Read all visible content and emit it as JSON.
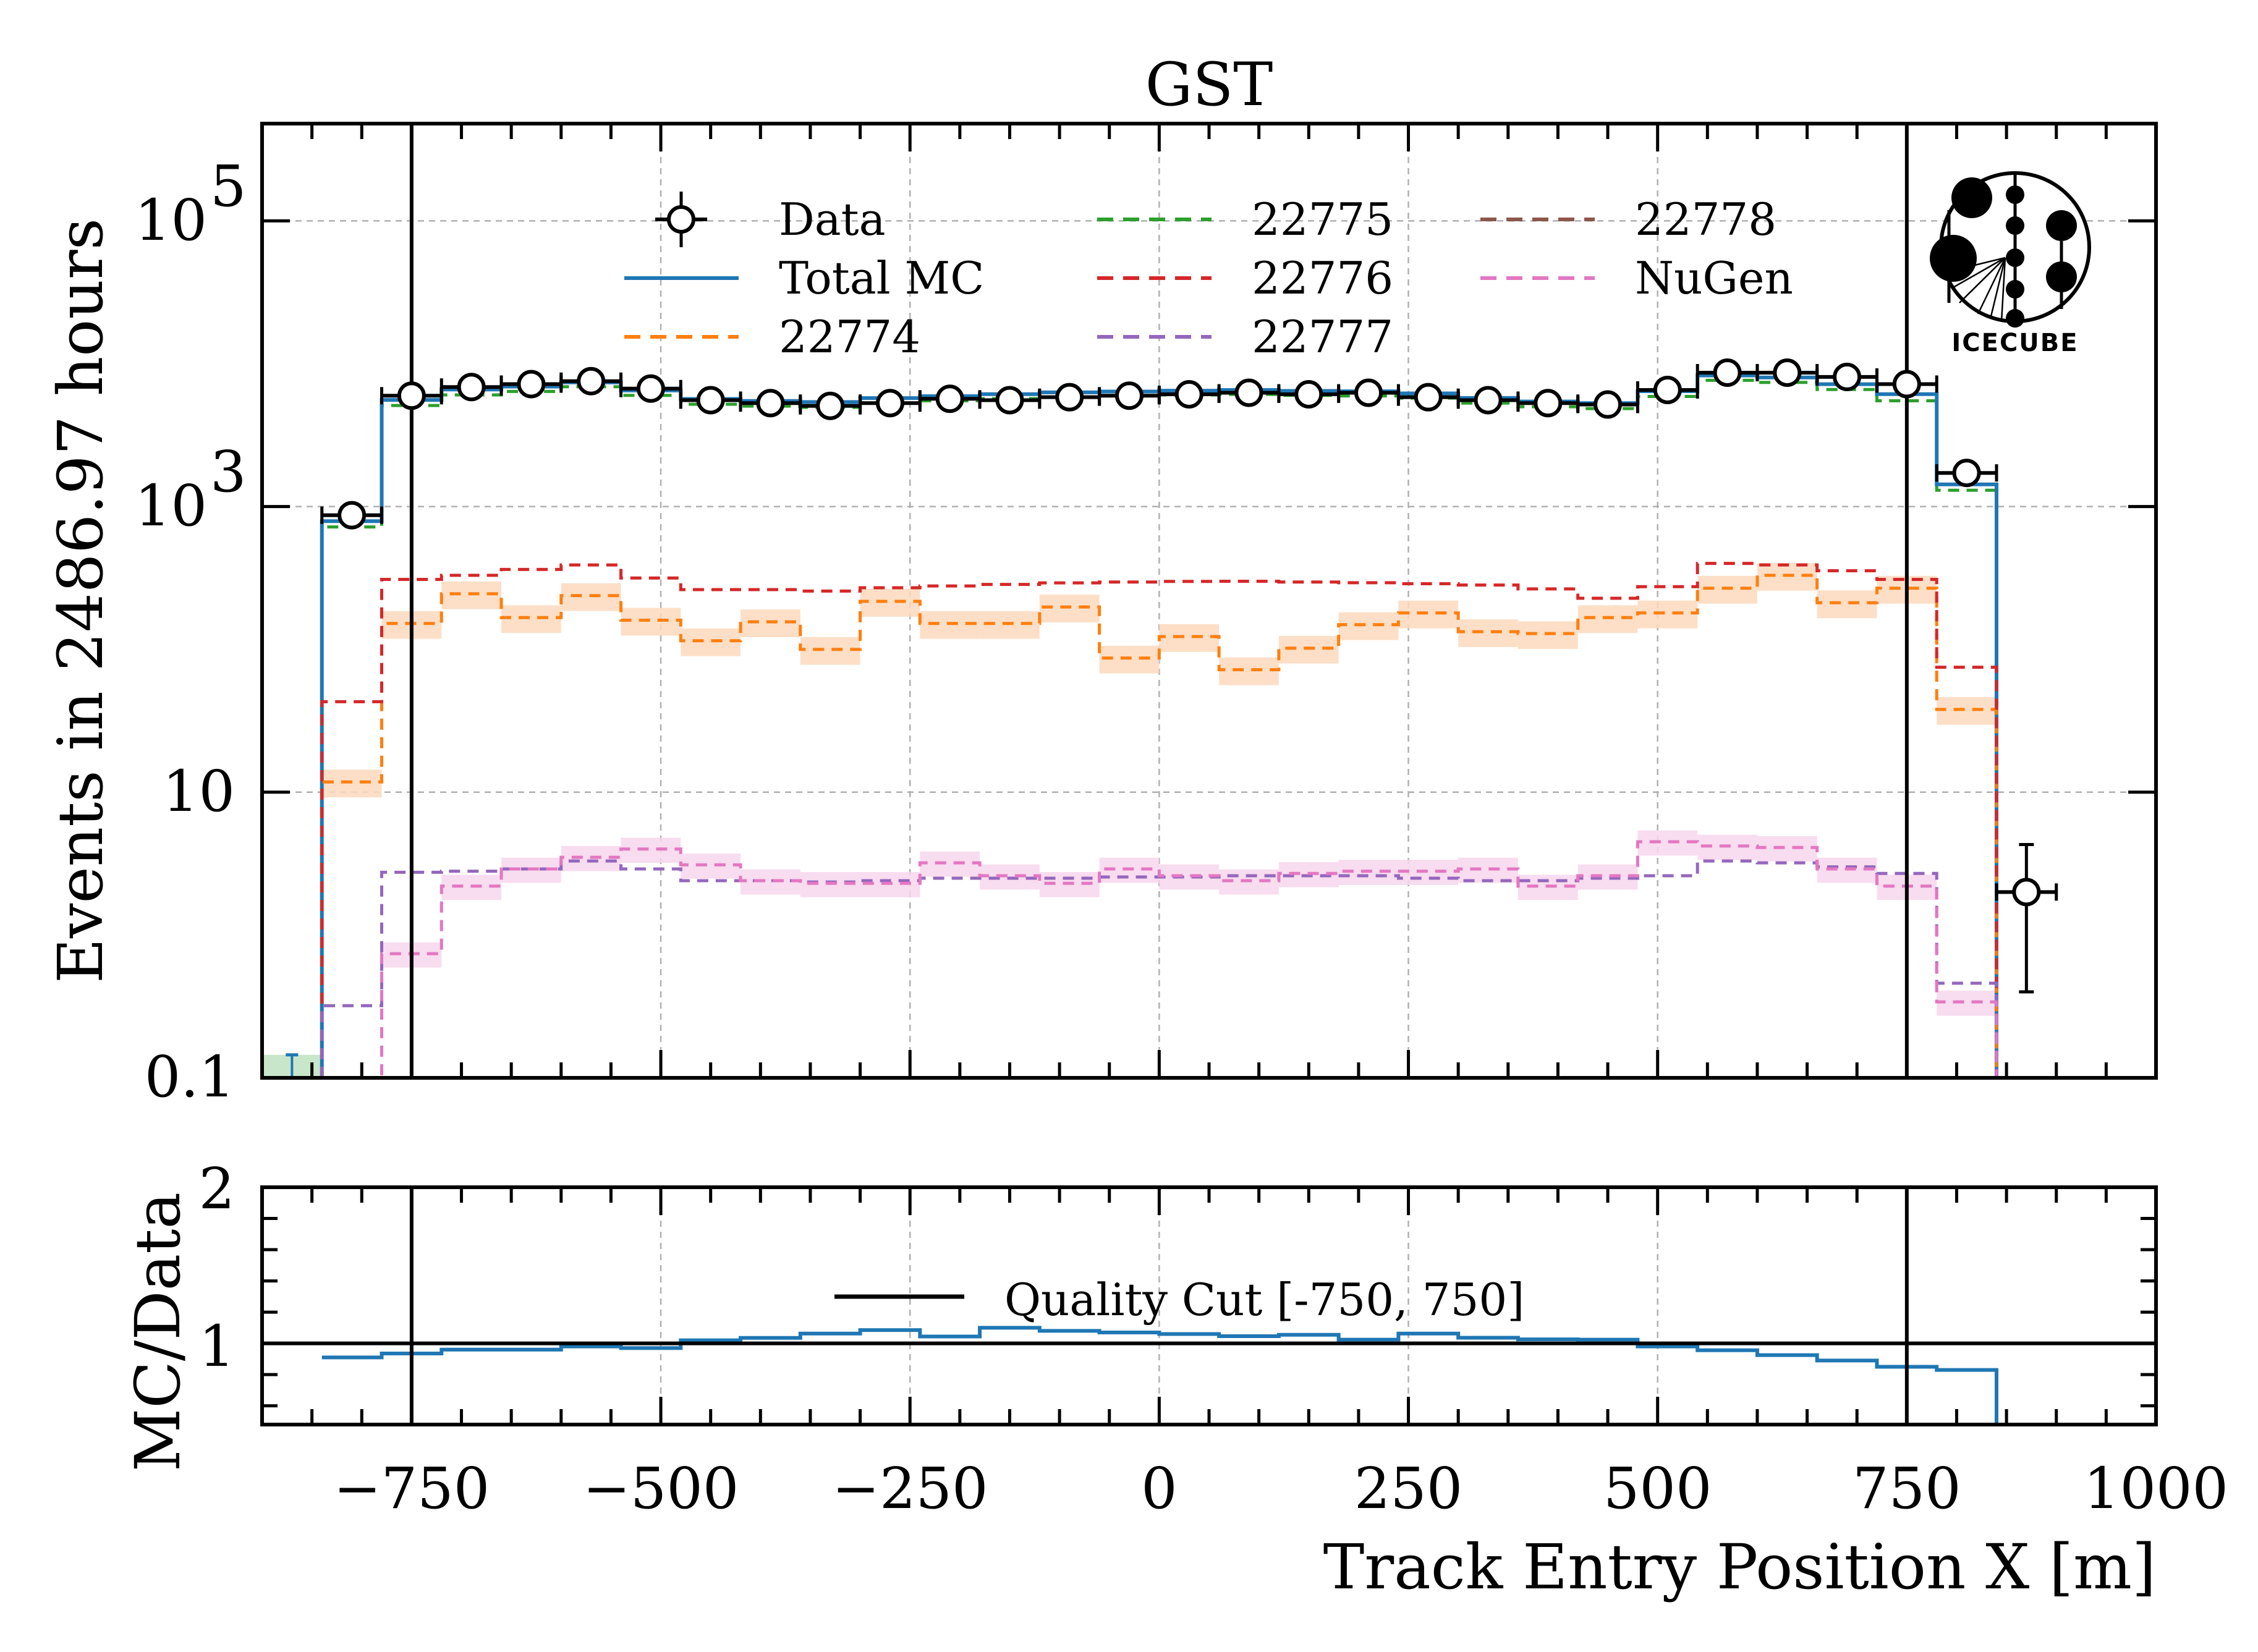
{
  "chart_data": [
    {
      "type": "histogram-step",
      "panel": "main",
      "title": "GST",
      "xlabel": "",
      "ylabel": "Events in 2486.97 hours",
      "yscale": "log",
      "xlim": [
        -900,
        1000
      ],
      "ylim": [
        0.1,
        480000
      ],
      "yticks": [
        {
          "value": 0.1,
          "label": "0.1"
        },
        {
          "value": 10,
          "label": "10"
        },
        {
          "value": 1000,
          "label": "10",
          "sup": "3"
        },
        {
          "value": 100000,
          "label": "10",
          "sup": "5"
        }
      ],
      "grid": true,
      "bin_edges": [
        -840,
        -780,
        -720,
        -660,
        -600,
        -540,
        -480,
        -420,
        -360,
        -300,
        -240,
        -180,
        -120,
        -60,
        0,
        60,
        120,
        180,
        240,
        300,
        360,
        420,
        480,
        540,
        600,
        660,
        720,
        780,
        840
      ],
      "vlines": [
        -750,
        750
      ],
      "data": {
        "name": "Data",
        "x": [
          -810,
          -750,
          -690,
          -630,
          -570,
          -510,
          -450,
          -390,
          -330,
          -270,
          -210,
          -150,
          -90,
          -30,
          30,
          90,
          150,
          210,
          270,
          330,
          390,
          450,
          510,
          570,
          630,
          690,
          750,
          810,
          870
        ],
        "y": [
          870,
          5970,
          6870,
          7200,
          7550,
          6700,
          5560,
          5300,
          5070,
          5300,
          5680,
          5560,
          5830,
          5970,
          6110,
          6260,
          6110,
          6260,
          5830,
          5560,
          5300,
          5180,
          6550,
          8660,
          8660,
          8080,
          7200,
          1720,
          2.0
        ],
        "yerr_low": [
          0,
          0,
          0,
          0,
          0,
          0,
          0,
          0,
          0,
          0,
          0,
          0,
          0,
          0,
          0,
          0,
          0,
          0,
          0,
          0,
          0,
          0,
          0,
          0,
          0,
          0,
          0,
          0,
          1.6
        ],
        "yerr_high": [
          0,
          0,
          0,
          0,
          0,
          0,
          0,
          0,
          0,
          0,
          0,
          0,
          0,
          0,
          0,
          0,
          0,
          0,
          0,
          0,
          0,
          0,
          0,
          0,
          0,
          0,
          0,
          0,
          2.3
        ],
        "xerr": 30,
        "color": "#000000"
      },
      "series": [
        {
          "name": "Total MC",
          "style": "solid",
          "color": "#1f77b4",
          "values": [
            790,
            5580,
            6600,
            6920,
            7400,
            6500,
            5670,
            5490,
            5390,
            5750,
            5930,
            6120,
            6300,
            6390,
            6480,
            6550,
            6450,
            6410,
            6200,
            5760,
            5440,
            5300,
            6420,
            8280,
            8010,
            7190,
            6120,
            1430
          ]
        },
        {
          "name": "22774",
          "style": "dashed",
          "color": "#ff7f0e",
          "band": "#fdd9bd",
          "values": [
            11.8,
            152,
            245,
            167,
            238,
            160,
            115,
            156,
            100,
            217,
            152,
            152,
            198,
            87,
            123,
            72,
            102,
            149,
            180,
            133,
            129,
            167,
            180,
            268,
            330,
            212,
            268,
            38
          ],
          "band_rel": 0.22
        },
        {
          "name": "22775",
          "style": "dashed",
          "color": "#2ca02c",
          "values": [
            720,
            5100,
            6050,
            6400,
            6900,
            6000,
            5200,
            5050,
            4950,
            5300,
            5500,
            5700,
            5850,
            5950,
            6050,
            6100,
            6000,
            5950,
            5750,
            5300,
            5000,
            4850,
            5900,
            7650,
            7400,
            6600,
            5500,
            1300
          ]
        },
        {
          "name": "22776",
          "style": "dashed",
          "color": "#d62728",
          "values": [
            43,
            309,
            330,
            363,
            390,
            316,
            262,
            262,
            256,
            270,
            278,
            285,
            292,
            296,
            299,
            300,
            296,
            293,
            288,
            282,
            265,
            228,
            275,
            400,
            390,
            355,
            309,
            75
          ]
        },
        {
          "name": "22777",
          "style": "dashed",
          "color": "#9467bd",
          "values": [
            0.32,
            2.75,
            2.8,
            2.9,
            3.3,
            2.9,
            2.4,
            2.4,
            2.35,
            2.4,
            2.5,
            2.5,
            2.5,
            2.55,
            2.55,
            2.6,
            2.6,
            2.6,
            2.5,
            2.4,
            2.4,
            2.5,
            2.6,
            3.3,
            3.2,
            3.0,
            2.7,
            0.46
          ]
        },
        {
          "name": "22778",
          "style": "dashed",
          "color": "#8c564b",
          "values": []
        },
        {
          "name": "NuGen",
          "style": "dashed",
          "color": "#e377c2",
          "band": "#f7d6ec",
          "values": [
            0.05,
            0.74,
            2.2,
            2.9,
            3.5,
            4.0,
            3.1,
            2.4,
            2.3,
            2.3,
            3.2,
            2.6,
            2.3,
            2.9,
            2.6,
            2.4,
            2.7,
            2.8,
            2.8,
            2.9,
            2.2,
            2.6,
            4.5,
            4.2,
            4.1,
            2.9,
            2.2,
            0.34
          ],
          "band_rel": 0.2
        }
      ],
      "extra_marks": {
        "green_band_first_bin": {
          "x": [
            -900,
            -840
          ],
          "value": 0.145,
          "color": "#c8e6c9"
        },
        "blue_errorbar_first": {
          "x": -870,
          "value": 0.145,
          "color": "#1f77b4"
        }
      },
      "legend": {
        "position": "top-center",
        "columns": 3,
        "entries": [
          "Data",
          "Total MC",
          "22774",
          "22775",
          "22776",
          "22777",
          "22778",
          "NuGen"
        ]
      },
      "logo": "IceCube"
    },
    {
      "type": "line",
      "panel": "ratio",
      "xlabel": "Track Entry Position X [m]",
      "ylabel": "MC/Data",
      "xlim": [
        -900,
        1000
      ],
      "ylim": [
        0.48,
        2
      ],
      "yticks": [
        {
          "value": 1,
          "label": "1"
        },
        {
          "value": 2,
          "label": "2"
        }
      ],
      "xticks": [
        {
          "value": -750,
          "label": "−750"
        },
        {
          "value": -500,
          "label": "−500"
        },
        {
          "value": -250,
          "label": "−250"
        },
        {
          "value": 0,
          "label": "0"
        },
        {
          "value": 250,
          "label": "250"
        },
        {
          "value": 500,
          "label": "500"
        },
        {
          "value": 750,
          "label": "750"
        },
        {
          "value": 1000,
          "label": "1000"
        }
      ],
      "grid": true,
      "hline": 1,
      "vlines": [
        -750,
        750
      ],
      "series": [
        {
          "name": "MC/Data",
          "color": "#1f77b4",
          "bin_edges": [
            -840,
            -780,
            -720,
            -660,
            -600,
            -540,
            -480,
            -420,
            -360,
            -300,
            -240,
            -180,
            -120,
            -60,
            0,
            60,
            120,
            180,
            240,
            300,
            360,
            420,
            480,
            540,
            600,
            660,
            720,
            780,
            840
          ],
          "values": [
            0.91,
            0.935,
            0.96,
            0.96,
            0.98,
            0.97,
            1.02,
            1.035,
            1.063,
            1.085,
            1.044,
            1.1,
            1.08,
            1.07,
            1.06,
            1.046,
            1.055,
            1.024,
            1.063,
            1.036,
            1.026,
            1.024,
            0.98,
            0.956,
            0.925,
            0.89,
            0.85,
            0.83
          ]
        }
      ],
      "legend": {
        "position": "center",
        "entries": [
          "Quality Cut [-750, 750]"
        ]
      }
    }
  ],
  "labels": {
    "title": "GST",
    "ylabel_main": "Events in 2486.97 hours",
    "ylabel_ratio": "MC/Data",
    "xlabel": "Track Entry Position X [m]",
    "ratio_legend": "Quality Cut [-750, 750]",
    "logo_text": "IceCube",
    "ytick_main": [
      "0.1",
      "10",
      "10",
      "10"
    ],
    "ytick_main_sup": [
      "",
      "",
      "3",
      "5"
    ],
    "ytick_ratio": [
      "1",
      "2"
    ]
  }
}
